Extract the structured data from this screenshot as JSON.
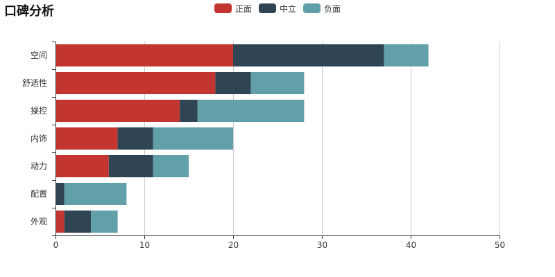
{
  "chart_data": {
    "type": "bar",
    "orientation": "horizontal",
    "stacked": true,
    "title": "口碑分析",
    "categories": [
      "空间",
      "舒适性",
      "操控",
      "内饰",
      "动力",
      "配置",
      "外观"
    ],
    "series": [
      {
        "name": "正面",
        "color": "#c23531",
        "values": [
          20,
          18,
          14,
          7,
          6,
          0,
          1
        ]
      },
      {
        "name": "中立",
        "color": "#2f4554",
        "values": [
          17,
          4,
          2,
          4,
          5,
          1,
          3
        ]
      },
      {
        "name": "负面",
        "color": "#61a0a8",
        "values": [
          5,
          6,
          12,
          9,
          4,
          7,
          3
        ]
      }
    ],
    "xlim": [
      0,
      50
    ],
    "xticks": [
      0,
      10,
      20,
      30,
      40,
      50
    ],
    "grid": "vertical",
    "legend_position": "top-center"
  }
}
